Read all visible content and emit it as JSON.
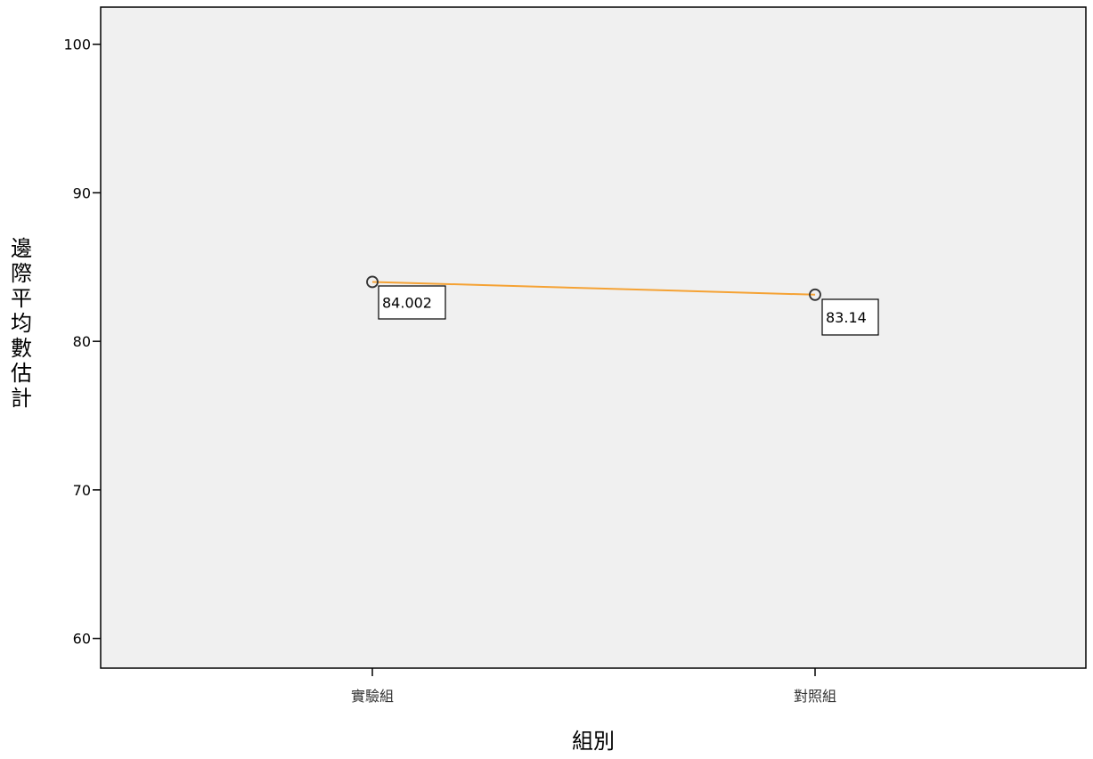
{
  "chart_data": {
    "type": "line",
    "categories": [
      "實驗組",
      "對照組"
    ],
    "series": [
      {
        "values": [
          84.002,
          83.14
        ]
      }
    ],
    "data_labels": [
      "84.002",
      "83.14"
    ],
    "xlabel": "組別",
    "ylabel": "邊際平均數估計",
    "ylim": [
      58,
      102.5
    ],
    "yticks": [
      60,
      70,
      80,
      90,
      100
    ],
    "grid": false,
    "colors": {
      "line": "#f5a234",
      "plot_background": "#f0f0f0",
      "marker_stroke": "#333333",
      "axis": "#000000"
    }
  }
}
